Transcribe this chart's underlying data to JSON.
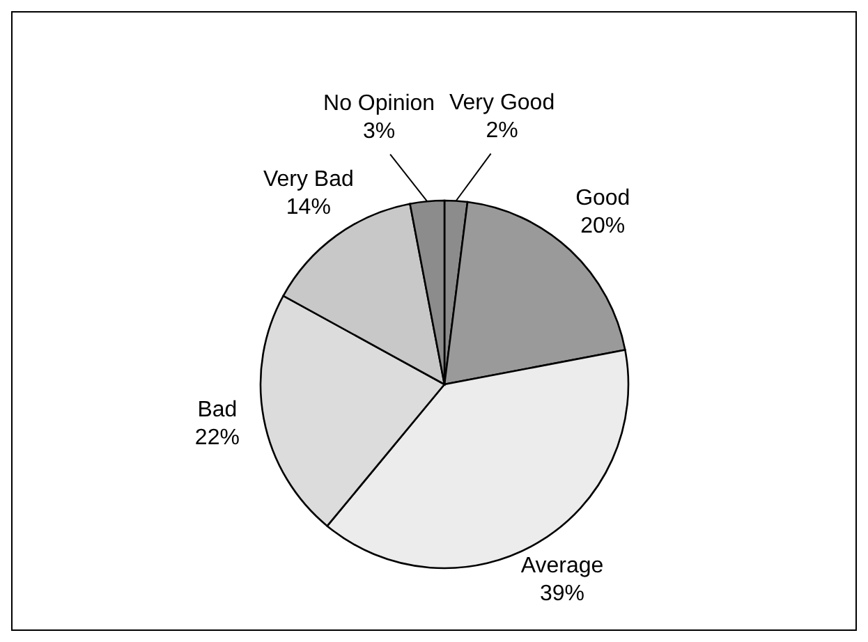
{
  "chart_data": {
    "type": "pie",
    "categories": [
      "Very Good",
      "Good",
      "Average",
      "Bad",
      "Very Bad",
      "No Opinion"
    ],
    "values": [
      2,
      20,
      39,
      22,
      14,
      3
    ],
    "value_labels": [
      "2%",
      "20%",
      "39%",
      "22%",
      "14%",
      "3%"
    ],
    "colors": [
      "#8c8c8c",
      "#9a9a9a",
      "#ececec",
      "#dcdcdc",
      "#c8c8c8",
      "#8c8c8c"
    ],
    "legend": false
  }
}
